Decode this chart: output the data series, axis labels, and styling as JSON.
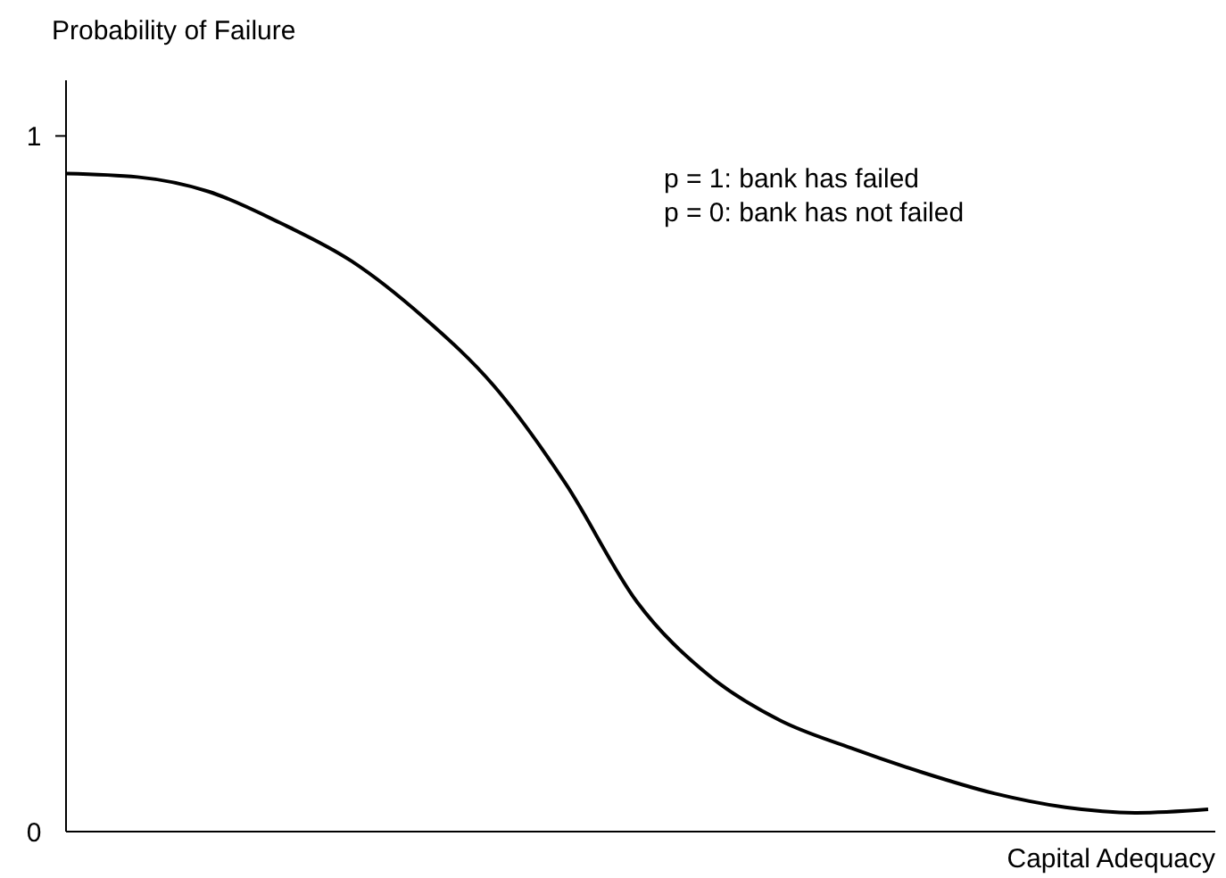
{
  "chart_data": {
    "type": "line",
    "ylabel": "Probability of Failure",
    "xlabel": "Capital Adequacy",
    "annotations": [
      "p = 1: bank has failed",
      "p = 0: bank has not failed"
    ],
    "categories": [
      null,
      null,
      null,
      null,
      null,
      null,
      null,
      null,
      null,
      null,
      null,
      null,
      null,
      null,
      null,
      null,
      null
    ],
    "series": [
      {
        "color": "#000000",
        "values": [
          0.946,
          0.941,
          0.92,
          0.875,
          0.82,
          0.74,
          0.64,
          0.5,
          0.33,
          0.225,
          0.16,
          0.12,
          0.085,
          0.055,
          0.035,
          0.027,
          0.032
        ]
      }
    ],
    "ylim": [
      0,
      1.08
    ],
    "yticks": [
      0,
      1
    ],
    "grid": false,
    "marker": "none",
    "line_style": "solid"
  }
}
